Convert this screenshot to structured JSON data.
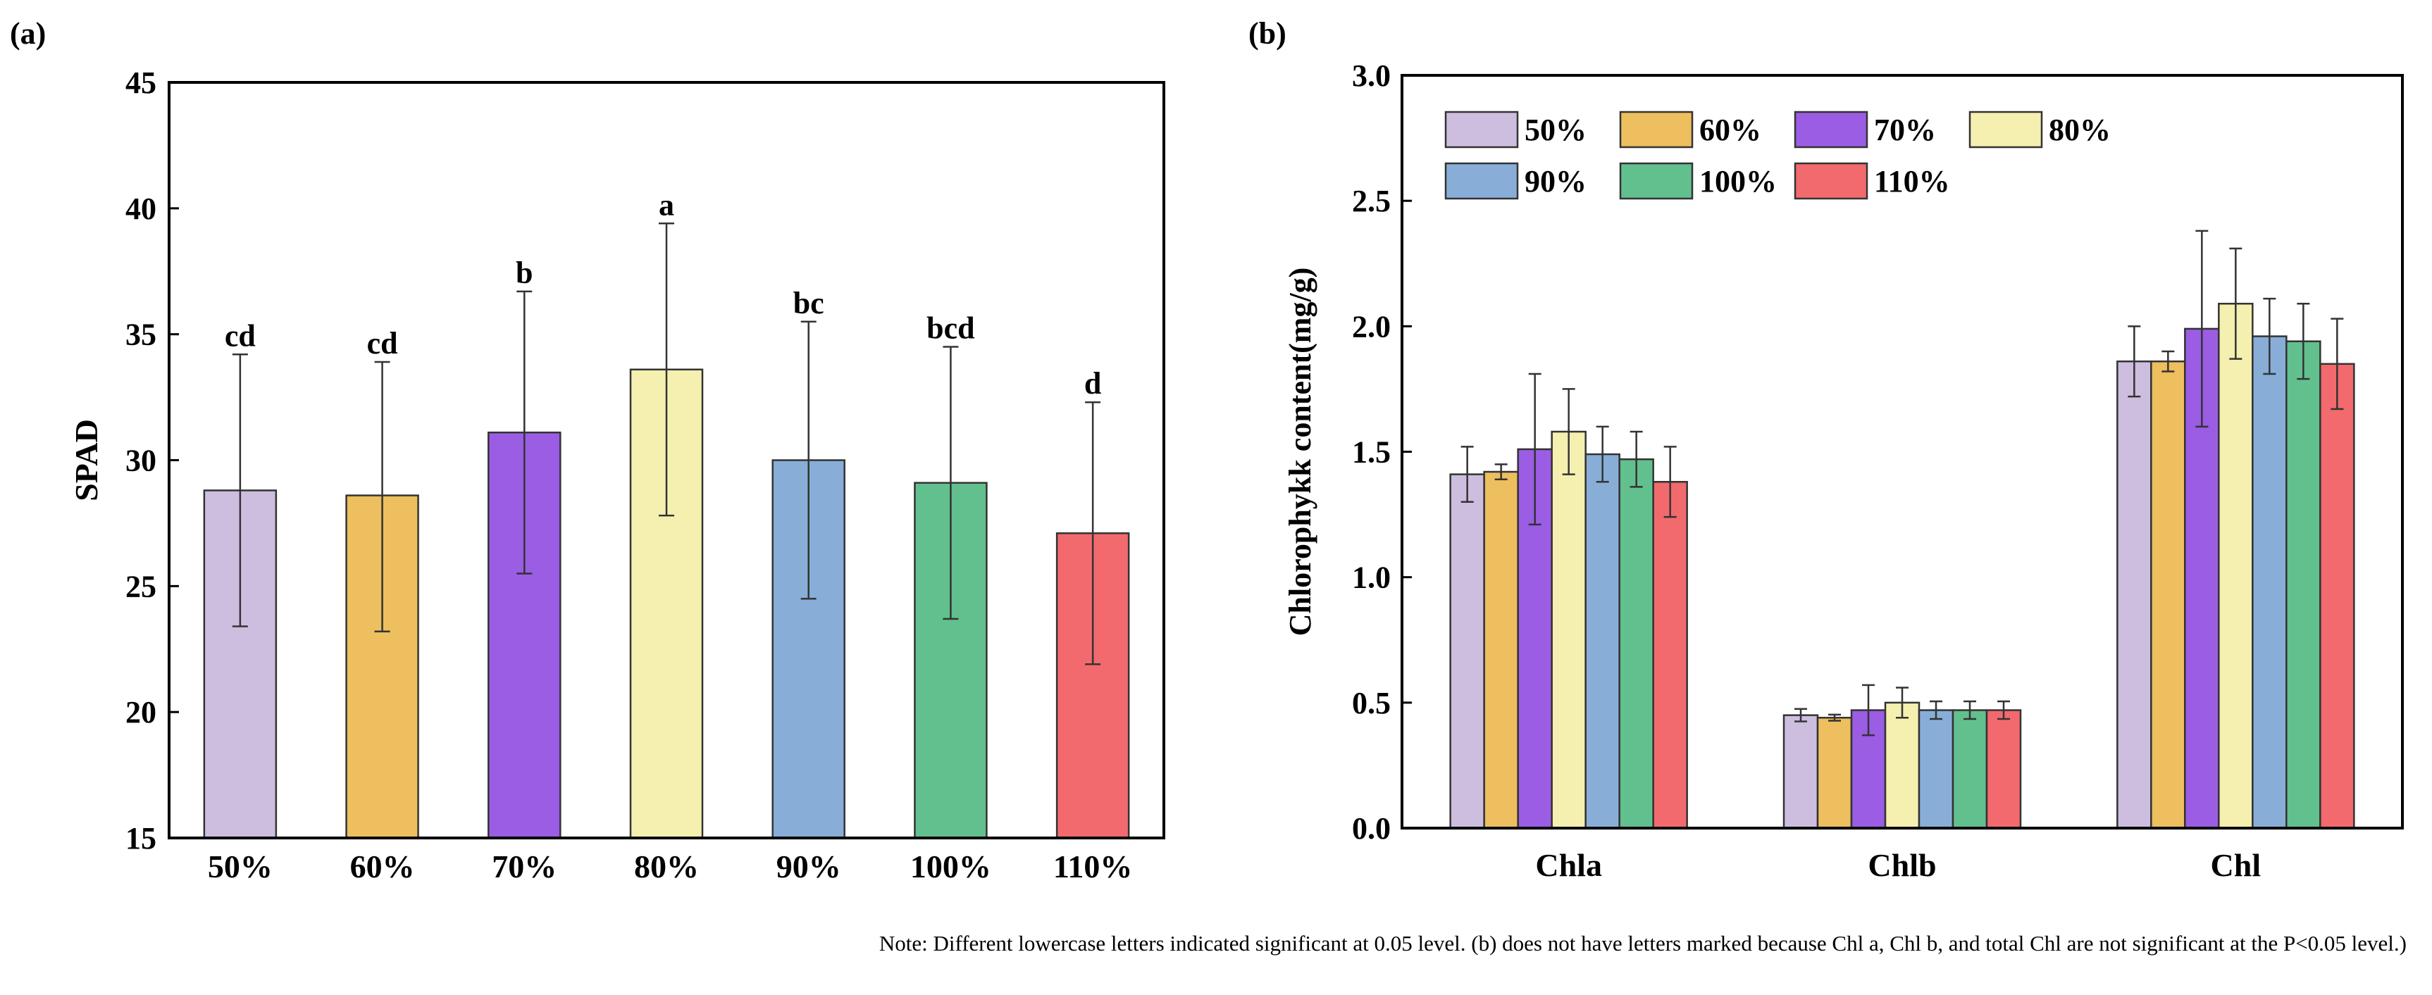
{
  "chart_data": [
    {
      "panel_label": "(a)",
      "type": "bar",
      "title": "",
      "xlabel": "",
      "ylabel": "SPAD",
      "ylim": [
        15,
        45
      ],
      "yticks": [
        "15",
        "20",
        "25",
        "30",
        "35",
        "40",
        "45"
      ],
      "categories": [
        "50%",
        "60%",
        "70%",
        "80%",
        "90%",
        "100%",
        "110%"
      ],
      "values": [
        28.8,
        28.6,
        31.1,
        33.6,
        30.0,
        29.1,
        27.1
      ],
      "error_low": [
        23.4,
        23.2,
        25.5,
        27.8,
        24.5,
        23.7,
        21.9
      ],
      "error_high": [
        34.2,
        33.9,
        36.7,
        39.4,
        35.5,
        34.5,
        32.3
      ],
      "significance_letters": [
        "cd",
        "cd",
        "b",
        "a",
        "bc",
        "bcd",
        "d"
      ],
      "colors": [
        "#CDBEE0",
        "#EDBF5E",
        "#9A5DE4",
        "#F5F0B0",
        "#88AED8",
        "#62C08E",
        "#F26A6D"
      ],
      "grid": false
    },
    {
      "panel_label": "(b)",
      "type": "bar",
      "title": "",
      "xlabel": "",
      "ylabel": "Chlorophykk content(mg/g)",
      "ylim": [
        0.0,
        3.0
      ],
      "yticks": [
        "0.0",
        "0.5",
        "1.0",
        "1.5",
        "2.0",
        "2.5",
        "3.0"
      ],
      "categories": [
        "Chla",
        "Chlb",
        "Chl"
      ],
      "legend_placement": "top-left",
      "series": [
        {
          "name": "50%",
          "color": "#CDBEE0",
          "values": [
            1.41,
            0.45,
            1.86
          ],
          "errors": [
            0.11,
            0.025,
            0.14
          ]
        },
        {
          "name": "60%",
          "color": "#EDBF5E",
          "values": [
            1.42,
            0.44,
            1.86
          ],
          "errors": [
            0.03,
            0.012,
            0.04
          ]
        },
        {
          "name": "70%",
          "color": "#9A5DE4",
          "values": [
            1.51,
            0.47,
            1.99
          ],
          "errors": [
            0.3,
            0.1,
            0.39
          ]
        },
        {
          "name": "80%",
          "color": "#F5F0B0",
          "values": [
            1.58,
            0.5,
            2.09
          ],
          "errors": [
            0.17,
            0.06,
            0.22
          ]
        },
        {
          "name": "90%",
          "color": "#88AED8",
          "values": [
            1.49,
            0.47,
            1.96
          ],
          "errors": [
            0.11,
            0.035,
            0.15
          ]
        },
        {
          "name": "100%",
          "color": "#62C08E",
          "values": [
            1.47,
            0.47,
            1.94
          ],
          "errors": [
            0.11,
            0.035,
            0.15
          ]
        },
        {
          "name": "110%",
          "color": "#F26A6D",
          "values": [
            1.38,
            0.47,
            1.85
          ],
          "errors": [
            0.14,
            0.035,
            0.18
          ]
        }
      ],
      "grid": false
    }
  ],
  "note": "Note: Different lowercase letters indicated significant at 0.05 level. (b) does not have letters marked because Chl a, Chl b, and total Chl are not significant at the P<0.05 level.)"
}
